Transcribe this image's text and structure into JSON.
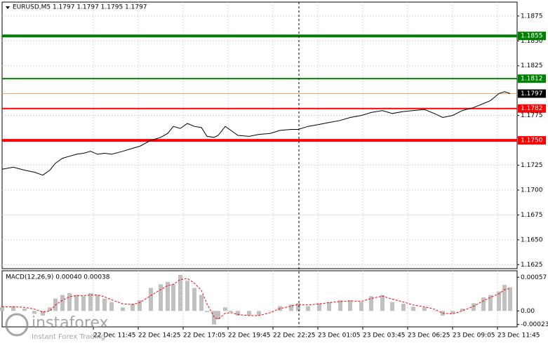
{
  "chart_data": {
    "type": "line",
    "title": "EURUSD,M5  1.1797 1.1797 1.1795 1.1797",
    "x": [
      0,
      8,
      16,
      23,
      29,
      34,
      38,
      43,
      48,
      53,
      58,
      63,
      68,
      73,
      78,
      86,
      93,
      98,
      106,
      113,
      118,
      122,
      127,
      132,
      137,
      142,
      146,
      151,
      154,
      159,
      163,
      168,
      176,
      183,
      191,
      198,
      206,
      211,
      218,
      226,
      233,
      241,
      248,
      256,
      263,
      271,
      278,
      286,
      293,
      301,
      308,
      314,
      321,
      328,
      336,
      343,
      348,
      354,
      358,
      362
    ],
    "series": [
      {
        "name": "EURUSD",
        "color": "#000000",
        "values": [
          1.1721,
          1.1723,
          1.172,
          1.1718,
          1.1715,
          1.172,
          1.1727,
          1.1732,
          1.1734,
          1.1736,
          1.1737,
          1.1739,
          1.1736,
          1.1737,
          1.1736,
          1.1739,
          1.1742,
          1.1744,
          1.175,
          1.1753,
          1.1757,
          1.1764,
          1.1762,
          1.1767,
          1.1764,
          1.1763,
          1.1754,
          1.1753,
          1.1755,
          1.1764,
          1.176,
          1.1755,
          1.1754,
          1.1756,
          1.1757,
          1.176,
          1.1761,
          1.1761,
          1.1764,
          1.1766,
          1.1768,
          1.177,
          1.1773,
          1.1775,
          1.1778,
          1.178,
          1.1777,
          1.1779,
          1.178,
          1.1781,
          1.1777,
          1.1773,
          1.1775,
          1.178,
          1.1783,
          1.1787,
          1.179,
          1.1797,
          1.1799,
          1.1797
        ]
      }
    ],
    "xlim": [
      0,
      367
    ],
    "xticks": [
      {
        "value": 65,
        "label": "22 Dec 11:45"
      },
      {
        "value": 97,
        "label": "22 Dec 14:25"
      },
      {
        "value": 129,
        "label": "22 Dec 17:05"
      },
      {
        "value": 161,
        "label": "22 Dec 19:45"
      },
      {
        "value": 193,
        "label": "22 Dec 22:25"
      },
      {
        "value": 225,
        "label": "23 Dec 01:05"
      },
      {
        "value": 257,
        "label": "23 Dec 03:45"
      },
      {
        "value": 289,
        "label": "23 Dec 06:25"
      },
      {
        "value": 321,
        "label": "23 Dec 09:05"
      },
      {
        "value": 353,
        "label": "23 Dec 11:45"
      }
    ],
    "ylim": [
      1.1621,
      1.1889
    ],
    "yticks": [
      1.1875,
      {
        "value": 1.185,
        "label": "1.1850"
      },
      1.1825,
      1.1775,
      1.1725,
      {
        "value": 1.17,
        "label": "1.1700"
      },
      1.1675,
      {
        "value": 1.165,
        "label": "1.1650"
      },
      1.1625
    ],
    "grid": true,
    "levels": [
      {
        "value": 1.1855,
        "label": "1.1855",
        "color": "#008000"
      },
      {
        "value": 1.1812,
        "label": "1.1812",
        "color": "#008000"
      },
      {
        "value": 1.1797,
        "label": "1.1797",
        "color": "#f4a460"
      },
      {
        "value": 1.1782,
        "label": "1.1782",
        "color": "#ff0000"
      },
      {
        "value": 1.175,
        "label": "1.1750",
        "color": "#ff0000"
      }
    ],
    "indicator": {
      "title": "MACD(12,26,9) 0.00040 0.00038",
      "histogram": {
        "color": "#c0c0c0",
        "values": [
          6e-05,
          8e-05,
          4e-05,
          -5e-05,
          -8e-05,
          6e-05,
          0.00021,
          0.00027,
          0.0003,
          0.00027,
          0.00025,
          0.0003,
          0.00027,
          0.00021,
          0.00015,
          6e-05,
          0.00012,
          0.00018,
          0.00039,
          0.00045,
          0.00049,
          0.00045,
          0.00061,
          0.00051,
          0.00039,
          0.00027,
          -2e-05,
          -0.00023,
          -0.00014,
          6e-05,
          -2e-05,
          -8e-05,
          -8e-05,
          -8e-05,
          0,
          8e-05,
          0.00011,
          0.00013,
          8e-05,
          0.00013,
          0.00015,
          0.00018,
          0.00018,
          0.00015,
          0.00025,
          0.00027,
          0.00015,
          0.00012,
          7e-05,
          6e-05,
          0,
          -8e-05,
          -5e-05,
          4e-05,
          0.00013,
          0.00023,
          0.00027,
          0.00033,
          0.00044,
          0.0004
        ]
      },
      "signal": {
        "color": "#ff0000",
        "values": [
          7e-05,
          7e-05,
          6e-05,
          3e-05,
          -2e-05,
          0,
          0.0001,
          0.00018,
          0.00024,
          0.00026,
          0.00026,
          0.00027,
          0.00027,
          0.00024,
          0.00019,
          0.00012,
          0.00011,
          0.00014,
          0.00026,
          0.00036,
          0.00043,
          0.00045,
          0.00053,
          0.00055,
          0.00047,
          0.00035,
          0.00012,
          -0.0001,
          -0.00014,
          -4e-05,
          -3e-05,
          -6e-05,
          -8e-05,
          -8e-05,
          -3e-05,
          4e-05,
          8e-05,
          0.00011,
          0.0001,
          0.00012,
          0.00014,
          0.00016,
          0.00017,
          0.00016,
          0.00021,
          0.00025,
          0.0002,
          0.00015,
          0.0001,
          7e-05,
          3e-05,
          -4e-05,
          -5e-05,
          0,
          8e-05,
          0.00017,
          0.00023,
          0.00029,
          0.00036,
          0.00038
        ]
      },
      "ylim": [
        -0.00027,
        0.00068
      ],
      "yticks": [
        0.00057,
        {
          "value": 0,
          "label": "0.00"
        },
        -0.00023
      ]
    },
    "watermark": {
      "brand": "instaforex",
      "tagline": "Instant Forex Trading"
    }
  }
}
